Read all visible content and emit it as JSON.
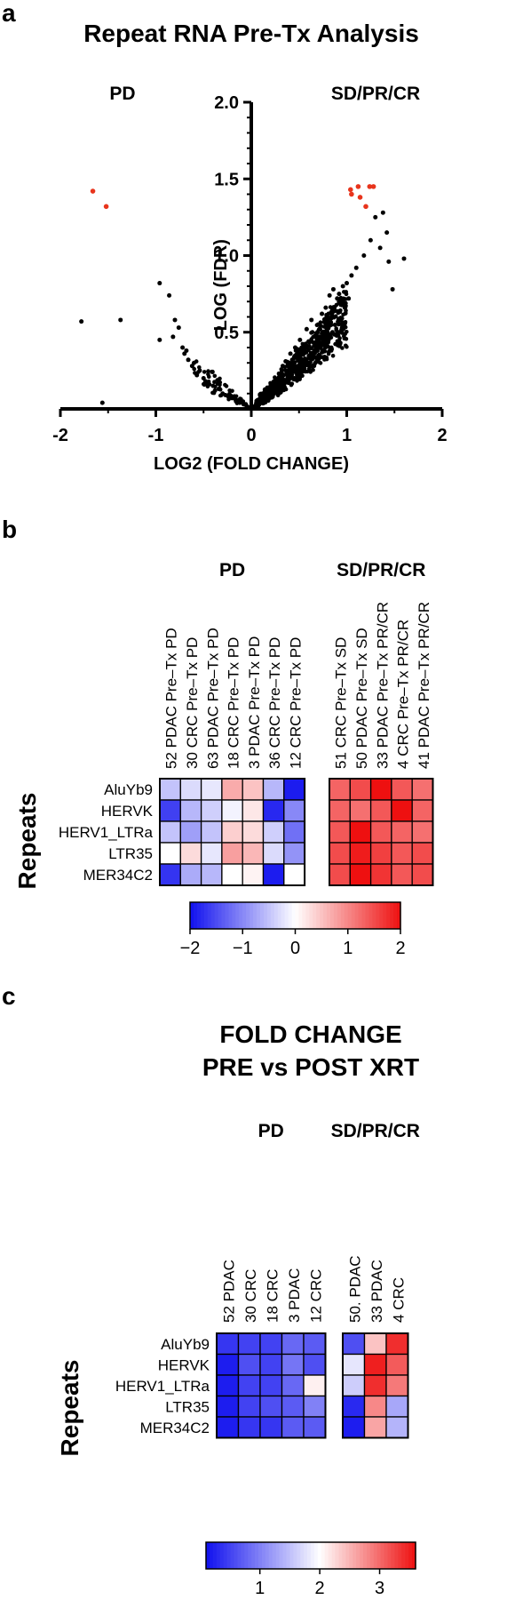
{
  "panel_a": {
    "letter": "a",
    "chart_data": {
      "type": "scatter",
      "title": "Repeat RNA Pre-Tx Analysis",
      "xlabel": "LOG2 (FOLD CHANGE)",
      "ylabel": "-LOG (FDR)",
      "xlim": [
        -2,
        2
      ],
      "ylim": [
        0,
        2
      ],
      "x_ticks": [
        "-2",
        "-1",
        "0",
        "1",
        "2"
      ],
      "y_ticks": [
        "0.5",
        "1.0",
        "1.5",
        "2.0"
      ],
      "grid": false,
      "group_labels": [
        "PD",
        "SD/PR/CR"
      ],
      "highlight_color": "#e8341c",
      "point_color": "#000000",
      "highlighted_points": [
        {
          "x": -1.66,
          "y": 1.42
        },
        {
          "x": -1.52,
          "y": 1.32
        },
        {
          "x": 1.04,
          "y": 1.43
        },
        {
          "x": 1.05,
          "y": 1.4
        },
        {
          "x": 1.12,
          "y": 1.45
        },
        {
          "x": 1.14,
          "y": 1.38
        },
        {
          "x": 1.2,
          "y": 1.32
        },
        {
          "x": 1.24,
          "y": 1.45
        },
        {
          "x": 1.28,
          "y": 1.45
        }
      ],
      "points": [
        {
          "x": -1.78,
          "y": 0.57
        },
        {
          "x": -1.37,
          "y": 0.58
        },
        {
          "x": -1.56,
          "y": 0.04
        },
        {
          "x": -0.96,
          "y": 0.82
        },
        {
          "x": -0.96,
          "y": 0.45
        },
        {
          "x": -0.86,
          "y": 0.74
        },
        {
          "x": -0.82,
          "y": 0.47
        },
        {
          "x": -0.8,
          "y": 0.58
        },
        {
          "x": -0.76,
          "y": 0.53
        },
        {
          "x": -0.72,
          "y": 0.4
        },
        {
          "x": -0.7,
          "y": 0.36
        },
        {
          "x": -0.68,
          "y": 0.38
        },
        {
          "x": -0.66,
          "y": 0.32
        },
        {
          "x": -0.62,
          "y": 0.28
        },
        {
          "x": -0.6,
          "y": 0.3
        },
        {
          "x": -0.57,
          "y": 0.22
        },
        {
          "x": -0.54,
          "y": 0.25
        },
        {
          "x": -0.5,
          "y": 0.2
        },
        {
          "x": -0.48,
          "y": 0.18
        },
        {
          "x": -0.44,
          "y": 0.16
        },
        {
          "x": -0.4,
          "y": 0.15
        },
        {
          "x": -0.38,
          "y": 0.12
        },
        {
          "x": -0.34,
          "y": 0.13
        },
        {
          "x": -0.3,
          "y": 0.1
        },
        {
          "x": -0.27,
          "y": 0.09
        },
        {
          "x": -0.24,
          "y": 0.08
        },
        {
          "x": -0.2,
          "y": 0.07
        },
        {
          "x": -0.16,
          "y": 0.05
        },
        {
          "x": -0.12,
          "y": 0.04
        },
        {
          "x": -0.08,
          "y": 0.03
        },
        {
          "x": -0.05,
          "y": 0.02
        },
        {
          "x": -0.02,
          "y": 0.01
        },
        {
          "x": 1.3,
          "y": 1.25
        },
        {
          "x": 1.38,
          "y": 1.28
        },
        {
          "x": 1.42,
          "y": 1.15
        },
        {
          "x": 1.25,
          "y": 1.1
        },
        {
          "x": 1.44,
          "y": 0.96
        },
        {
          "x": 1.6,
          "y": 0.98
        },
        {
          "x": 1.48,
          "y": 0.78
        },
        {
          "x": 1.35,
          "y": 1.05
        },
        {
          "x": 1.18,
          "y": 1.0
        },
        {
          "x": 1.1,
          "y": 0.92
        },
        {
          "x": 1.05,
          "y": 0.87
        },
        {
          "x": 1.0,
          "y": 0.82
        },
        {
          "x": 0.96,
          "y": 0.8
        },
        {
          "x": 0.92,
          "y": 0.75
        },
        {
          "x": 0.9,
          "y": 0.72
        },
        {
          "x": 0.86,
          "y": 0.78
        },
        {
          "x": 0.82,
          "y": 0.74
        },
        {
          "x": 0.88,
          "y": 0.64
        },
        {
          "x": 0.84,
          "y": 0.6
        },
        {
          "x": 0.8,
          "y": 0.55
        },
        {
          "x": 0.78,
          "y": 0.66
        },
        {
          "x": 0.74,
          "y": 0.62
        },
        {
          "x": 0.7,
          "y": 0.55
        },
        {
          "x": 0.68,
          "y": 0.48
        },
        {
          "x": 0.64,
          "y": 0.5
        },
        {
          "x": 0.6,
          "y": 0.44
        },
        {
          "x": 0.58,
          "y": 0.4
        },
        {
          "x": 0.55,
          "y": 0.42
        },
        {
          "x": 0.52,
          "y": 0.36
        },
        {
          "x": 0.5,
          "y": 0.33
        },
        {
          "x": 0.47,
          "y": 0.35
        },
        {
          "x": 0.44,
          "y": 0.29
        },
        {
          "x": 0.42,
          "y": 0.27
        },
        {
          "x": 0.4,
          "y": 0.3
        },
        {
          "x": 0.37,
          "y": 0.24
        },
        {
          "x": 0.34,
          "y": 0.22
        },
        {
          "x": 0.32,
          "y": 0.25
        },
        {
          "x": 0.3,
          "y": 0.19
        },
        {
          "x": 0.27,
          "y": 0.17
        },
        {
          "x": 0.24,
          "y": 0.15
        },
        {
          "x": 0.22,
          "y": 0.12
        },
        {
          "x": 0.19,
          "y": 0.11
        },
        {
          "x": 0.16,
          "y": 0.09
        },
        {
          "x": 0.13,
          "y": 0.07
        },
        {
          "x": 0.1,
          "y": 0.05
        },
        {
          "x": 0.07,
          "y": 0.04
        },
        {
          "x": 0.04,
          "y": 0.02
        },
        {
          "x": 0.02,
          "y": 0.01
        },
        {
          "x": 0.76,
          "y": 0.46
        },
        {
          "x": 0.72,
          "y": 0.4
        },
        {
          "x": 0.66,
          "y": 0.38
        },
        {
          "x": 0.62,
          "y": 0.34
        },
        {
          "x": 0.56,
          "y": 0.3
        },
        {
          "x": 0.53,
          "y": 0.26
        },
        {
          "x": 0.48,
          "y": 0.22
        },
        {
          "x": 0.45,
          "y": 0.2
        },
        {
          "x": 0.39,
          "y": 0.17
        },
        {
          "x": 0.35,
          "y": 0.14
        },
        {
          "x": 0.31,
          "y": 0.11
        },
        {
          "x": 0.28,
          "y": 0.09
        },
        {
          "x": 0.85,
          "y": 0.5
        },
        {
          "x": 0.81,
          "y": 0.45
        },
        {
          "x": 0.94,
          "y": 0.58
        },
        {
          "x": 0.98,
          "y": 0.66
        },
        {
          "x": 1.02,
          "y": 0.72
        },
        {
          "x": 0.63,
          "y": 0.58
        },
        {
          "x": 0.58,
          "y": 0.52
        },
        {
          "x": 0.51,
          "y": 0.45
        },
        {
          "x": 0.46,
          "y": 0.4
        },
        {
          "x": 0.41,
          "y": 0.36
        },
        {
          "x": 0.36,
          "y": 0.31
        },
        {
          "x": 0.33,
          "y": 0.28
        },
        {
          "x": 0.29,
          "y": 0.23
        },
        {
          "x": 0.25,
          "y": 0.2
        },
        {
          "x": 0.21,
          "y": 0.16
        },
        {
          "x": 0.18,
          "y": 0.13
        },
        {
          "x": 0.15,
          "y": 0.12
        },
        {
          "x": 0.12,
          "y": 0.1
        }
      ]
    }
  },
  "panel_b": {
    "letter": "b",
    "chart_data": {
      "type": "heatmap",
      "ylabel": "Repeats",
      "groups": [
        {
          "name": "PD",
          "columns": [
            "52 PDAC  Pre–Tx PD",
            "30 CRC  Pre–Tx PD",
            "63 PDAC  Pre–Tx PD",
            "18 CRC  Pre–Tx PD",
            "3 PDAC  Pre–Tx PD",
            "36 CRC  Pre–Tx PD",
            "12 CRC  Pre–Tx PD"
          ]
        },
        {
          "name": "SD/PR/CR",
          "columns": [
            "51 CRC  Pre–Tx SD",
            "50 PDAC  Pre–Tx SD",
            "33 PDAC  Pre–Tx PR/CR",
            "4 CRC  Pre–Tx PR/CR",
            "41 PDAC  Pre–Tx PR/CR"
          ]
        }
      ],
      "rows": [
        "AluYb9",
        "HERVK",
        "HERV1_LTRa",
        "LTR35",
        "MER34C2"
      ],
      "values": [
        [
          -0.5,
          -0.3,
          -0.2,
          0.7,
          0.5,
          -0.6,
          -1.9,
          1.3,
          1.5,
          2.0,
          1.4,
          1.2
        ],
        [
          -1.6,
          -0.6,
          -0.4,
          -0.1,
          0.2,
          -1.8,
          -1.0,
          1.3,
          1.2,
          1.4,
          2.0,
          1.3
        ],
        [
          -0.5,
          -0.8,
          -0.5,
          0.4,
          0.3,
          -0.4,
          -1.2,
          1.4,
          2.0,
          1.4,
          1.3,
          1.2
        ],
        [
          0.0,
          0.3,
          -0.2,
          0.8,
          0.6,
          -0.3,
          -0.9,
          1.5,
          1.9,
          1.6,
          1.4,
          1.5
        ],
        [
          -1.7,
          -0.7,
          -0.6,
          0.0,
          0.1,
          -1.9,
          0.0,
          1.5,
          2.0,
          1.7,
          1.4,
          1.5
        ]
      ],
      "scale_min": -2,
      "scale_max": 2,
      "colorbar_ticks": [
        "−2",
        "−1",
        "0",
        "1",
        "2"
      ],
      "color_low": "#1010ee",
      "color_mid": "#ffffff",
      "color_high": "#ee1010"
    }
  },
  "panel_c": {
    "letter": "c",
    "chart_data": {
      "type": "heatmap",
      "title": "FOLD CHANGE",
      "subtitle": "PRE vs POST XRT",
      "ylabel": "Repeats",
      "groups": [
        {
          "name": "PD",
          "columns": [
            "52 PDAC",
            "30 CRC",
            "18 CRC",
            "3 PDAC",
            "12 CRC"
          ]
        },
        {
          "name": "SD/PR/CR",
          "columns": [
            "50. PDAC",
            "33 PDAC",
            "4 CRC"
          ]
        }
      ],
      "rows": [
        "AluYb9",
        "HERVK",
        "HERV1_LTRa",
        "LTR35",
        "MER34C2"
      ],
      "values": [
        [
          0.4,
          0.5,
          0.5,
          0.8,
          0.7,
          0.6,
          2.4,
          3.4
        ],
        [
          0.2,
          0.6,
          0.5,
          0.9,
          0.6,
          1.8,
          3.5,
          3.1
        ],
        [
          0.2,
          0.5,
          0.5,
          0.8,
          2.1,
          1.6,
          3.4,
          2.9
        ],
        [
          0.2,
          0.5,
          0.6,
          0.7,
          1.0,
          0.3,
          2.8,
          1.3
        ],
        [
          0.2,
          0.4,
          0.4,
          0.7,
          0.7,
          0.2,
          2.6,
          1.4
        ]
      ],
      "scale_min": 0.1,
      "scale_max": 3.6,
      "scale_mid": 2,
      "colorbar_ticks": [
        "1",
        "2",
        "3"
      ],
      "color_low": "#1010ee",
      "color_mid": "#ffffff",
      "color_high": "#ee1010"
    }
  }
}
